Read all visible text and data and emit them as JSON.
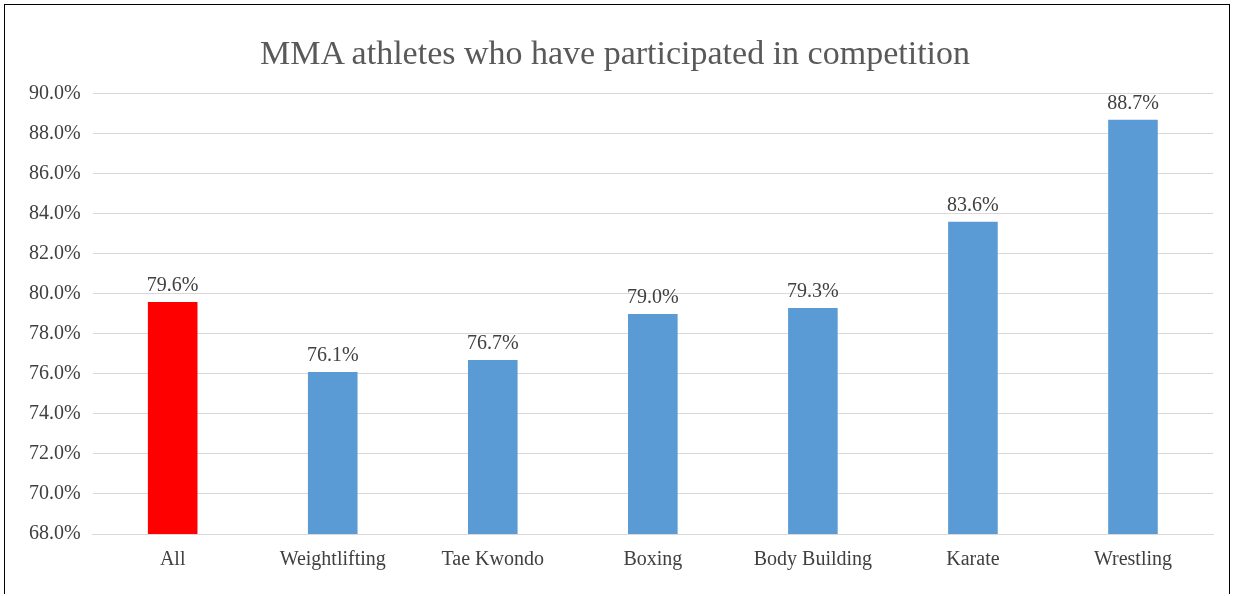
{
  "chart_data": {
    "type": "bar",
    "title": "MMA athletes who have participated in competition",
    "categories": [
      "All",
      "Weightlifting",
      "Tae Kwondo",
      "Boxing",
      "Body Building",
      "Karate",
      "Wrestling"
    ],
    "values": [
      79.6,
      76.1,
      76.7,
      79.0,
      79.3,
      83.6,
      88.7
    ],
    "colors": [
      "#ff0000",
      "#5b9bd5",
      "#5b9bd5",
      "#5b9bd5",
      "#5b9bd5",
      "#5b9bd5",
      "#5b9bd5"
    ],
    "value_labels": [
      "79.6%",
      "76.1%",
      "76.7%",
      "79.0%",
      "79.3%",
      "83.6%",
      "88.7%"
    ],
    "ylim": [
      68,
      90
    ],
    "yticks": [
      {
        "value": 68,
        "label": "68.0%"
      },
      {
        "value": 70,
        "label": "70.0%"
      },
      {
        "value": 72,
        "label": "72.0%"
      },
      {
        "value": 74,
        "label": "74.0%"
      },
      {
        "value": 76,
        "label": "76.0%"
      },
      {
        "value": 78,
        "label": "78.0%"
      },
      {
        "value": 80,
        "label": "80.0%"
      },
      {
        "value": 82,
        "label": "82.0%"
      },
      {
        "value": 84,
        "label": "84.0%"
      },
      {
        "value": 86,
        "label": "86.0%"
      },
      {
        "value": 88,
        "label": "88.0%"
      },
      {
        "value": 90,
        "label": "90.0%"
      }
    ],
    "grid": "y",
    "legend": false
  }
}
